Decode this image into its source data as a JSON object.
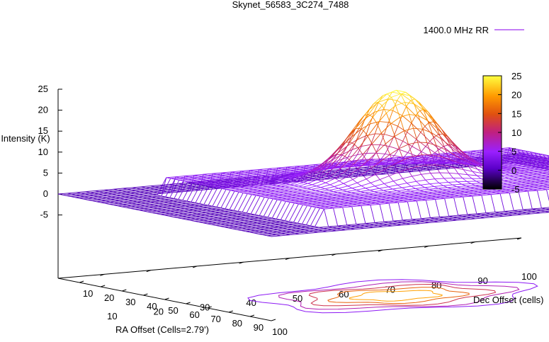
{
  "chart_data": {
    "type": "surface3d",
    "title": "Skynet_56583_3C274_7488",
    "legend": {
      "label": "1400.0 MHz RR",
      "color": "#a030f0",
      "placement": "top-right"
    },
    "xlabel": "RA Offset (Cells=2.79')",
    "ylabel": "Dec Offset (cells)",
    "zlabel": "Intensity (K)",
    "x_ticks": [
      "10",
      "20",
      "30",
      "40",
      "50",
      "60",
      "70",
      "80",
      "90",
      "100"
    ],
    "y_ticks": [
      "10",
      "20",
      "30",
      "40",
      "50",
      "60",
      "70",
      "80",
      "90",
      "100"
    ],
    "z_ticks": [
      "25",
      "20",
      "15",
      "10",
      "5",
      "0",
      "-5"
    ],
    "xlim": [
      0,
      100
    ],
    "ylim": [
      0,
      100
    ],
    "zlim": [
      -5,
      25
    ],
    "colorbar": {
      "ticks": [
        "25",
        "20",
        "15",
        "10",
        "5",
        "0",
        "-5"
      ],
      "range": [
        -5,
        25
      ],
      "stops": [
        "#000000",
        "#5a00c8",
        "#9a20ff",
        "#c02080",
        "#e05010",
        "#ff9a00",
        "#ffff40"
      ]
    },
    "surface": {
      "peak_center": [
        50,
        50
      ],
      "peak_intensity": 25,
      "plateau_intensity": 4,
      "plateau_extent": [
        15,
        90
      ],
      "baseline_intensity": 0
    },
    "contour_levels": [
      4,
      8,
      12,
      16,
      20
    ]
  }
}
